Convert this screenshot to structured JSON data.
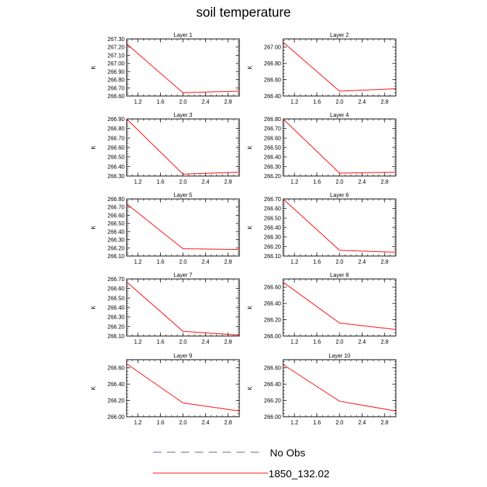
{
  "title": "soil temperature",
  "legend": {
    "entries": [
      {
        "label": "No Obs",
        "color": "#5a5aa0",
        "style": "dashed"
      },
      {
        "label": "1850_132.02",
        "color": "#ff0000",
        "style": "solid"
      }
    ]
  },
  "colors": {
    "line": "#ff0000",
    "axis": "#000000"
  },
  "chart_data": [
    {
      "type": "line",
      "title": "Layer 1",
      "ylabel": "K",
      "xlim": [
        1,
        3
      ],
      "xticks": [
        1.2,
        1.6,
        2.0,
        2.4,
        2.8
      ],
      "ylim": [
        266.6,
        267.3
      ],
      "yticks": [
        266.6,
        266.7,
        266.8,
        266.9,
        267.0,
        267.1,
        267.2,
        267.3
      ],
      "series": [
        {
          "name": "1850_132.02",
          "x": [
            1,
            2,
            3
          ],
          "y": [
            267.24,
            266.64,
            266.66
          ]
        }
      ]
    },
    {
      "type": "line",
      "title": "Layer 2",
      "ylabel": "K",
      "xlim": [
        1,
        3
      ],
      "xticks": [
        1.2,
        1.6,
        2.0,
        2.4,
        2.8
      ],
      "ylim": [
        266.4,
        267.1
      ],
      "yticks": [
        266.4,
        266.6,
        266.8,
        267.0
      ],
      "series": [
        {
          "name": "1850_132.02",
          "x": [
            1,
            2,
            3
          ],
          "y": [
            267.06,
            266.46,
            266.49
          ]
        }
      ]
    },
    {
      "type": "line",
      "title": "Layer 3",
      "ylabel": "K",
      "xlim": [
        1,
        3
      ],
      "xticks": [
        1.2,
        1.6,
        2.0,
        2.4,
        2.8
      ],
      "ylim": [
        266.3,
        266.9
      ],
      "yticks": [
        266.3,
        266.4,
        266.5,
        266.6,
        266.7,
        266.8,
        266.9
      ],
      "series": [
        {
          "name": "1850_132.02",
          "x": [
            1,
            2,
            3
          ],
          "y": [
            266.9,
            266.32,
            266.34
          ]
        }
      ]
    },
    {
      "type": "line",
      "title": "Layer 4",
      "ylabel": "K",
      "xlim": [
        1,
        3
      ],
      "xticks": [
        1.2,
        1.6,
        2.0,
        2.4,
        2.8
      ],
      "ylim": [
        266.2,
        266.8
      ],
      "yticks": [
        266.2,
        266.3,
        266.4,
        266.5,
        266.6,
        266.7,
        266.8
      ],
      "series": [
        {
          "name": "1850_132.02",
          "x": [
            1,
            2,
            3
          ],
          "y": [
            266.8,
            266.23,
            266.24
          ]
        }
      ]
    },
    {
      "type": "line",
      "title": "Layer 5",
      "ylabel": "K",
      "xlim": [
        1,
        3
      ],
      "xticks": [
        1.2,
        1.6,
        2.0,
        2.4,
        2.8
      ],
      "ylim": [
        266.1,
        266.8
      ],
      "yticks": [
        266.1,
        266.2,
        266.3,
        266.4,
        266.5,
        266.6,
        266.7,
        266.8
      ],
      "series": [
        {
          "name": "1850_132.02",
          "x": [
            1,
            2,
            3
          ],
          "y": [
            266.74,
            266.19,
            266.18
          ]
        }
      ]
    },
    {
      "type": "line",
      "title": "Layer 6",
      "ylabel": "K",
      "xlim": [
        1,
        3
      ],
      "xticks": [
        1.2,
        1.6,
        2.0,
        2.4,
        2.8
      ],
      "ylim": [
        266.1,
        266.7
      ],
      "yticks": [
        266.1,
        266.2,
        266.3,
        266.4,
        266.5,
        266.6,
        266.7
      ],
      "series": [
        {
          "name": "1850_132.02",
          "x": [
            1,
            2,
            3
          ],
          "y": [
            266.7,
            266.16,
            266.14
          ]
        }
      ]
    },
    {
      "type": "line",
      "title": "Layer 7",
      "ylabel": "K",
      "xlim": [
        1,
        3
      ],
      "xticks": [
        1.2,
        1.6,
        2.0,
        2.4,
        2.8
      ],
      "ylim": [
        266.1,
        266.7
      ],
      "yticks": [
        266.1,
        266.2,
        266.3,
        266.4,
        266.5,
        266.6,
        266.7
      ],
      "series": [
        {
          "name": "1850_132.02",
          "x": [
            1,
            2,
            3
          ],
          "y": [
            266.67,
            266.15,
            266.11
          ]
        }
      ]
    },
    {
      "type": "line",
      "title": "Layer 8",
      "ylabel": "K",
      "xlim": [
        1,
        3
      ],
      "xticks": [
        1.2,
        1.6,
        2.0,
        2.4,
        2.8
      ],
      "ylim": [
        266.0,
        266.7
      ],
      "yticks": [
        266.0,
        266.2,
        266.4,
        266.6
      ],
      "series": [
        {
          "name": "1850_132.02",
          "x": [
            1,
            2,
            3
          ],
          "y": [
            266.66,
            266.16,
            266.08
          ]
        }
      ]
    },
    {
      "type": "line",
      "title": "Layer 9",
      "ylabel": "K",
      "xlim": [
        1,
        3
      ],
      "xticks": [
        1.2,
        1.6,
        2.0,
        2.4,
        2.8
      ],
      "ylim": [
        266.0,
        266.7
      ],
      "yticks": [
        266.0,
        266.2,
        266.4,
        266.6
      ],
      "series": [
        {
          "name": "1850_132.02",
          "x": [
            1,
            2,
            3
          ],
          "y": [
            266.65,
            266.17,
            266.07
          ]
        }
      ]
    },
    {
      "type": "line",
      "title": "Layer 10",
      "ylabel": "K",
      "xlim": [
        1,
        3
      ],
      "xticks": [
        1.2,
        1.6,
        2.0,
        2.4,
        2.8
      ],
      "ylim": [
        266.0,
        266.7
      ],
      "yticks": [
        266.0,
        266.2,
        266.4,
        266.6
      ],
      "series": [
        {
          "name": "1850_132.02",
          "x": [
            1,
            2,
            3
          ],
          "y": [
            266.64,
            266.19,
            266.07
          ]
        }
      ]
    }
  ]
}
